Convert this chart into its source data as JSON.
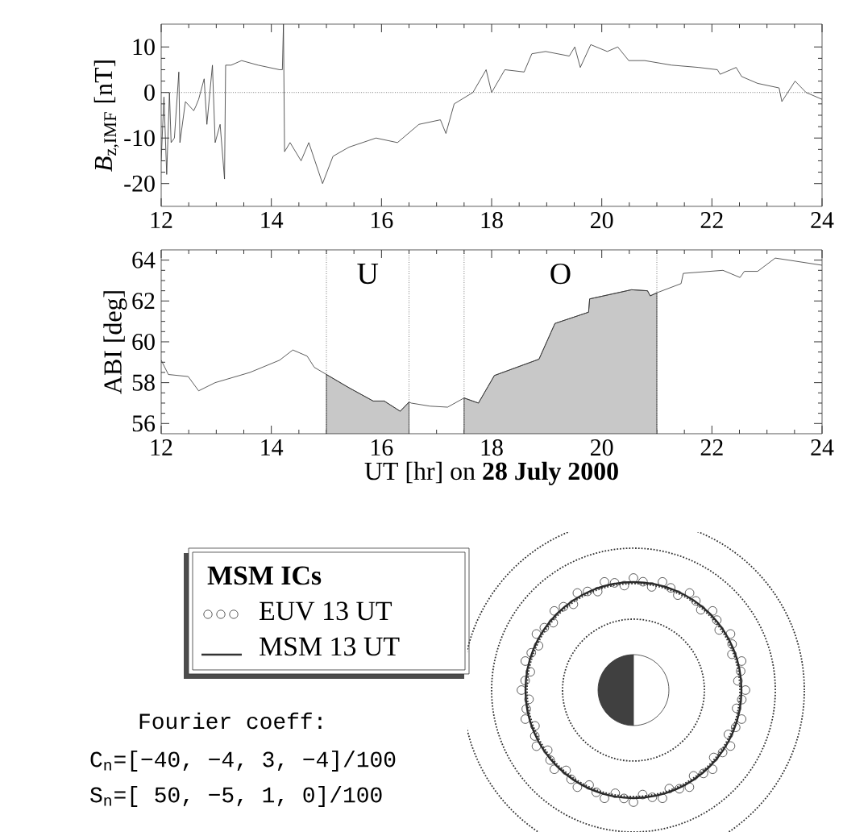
{
  "chart_data": [
    {
      "type": "line",
      "ylabel": "*B*$_{z,IMF}$ [nT]",
      "xlim": [
        12,
        24
      ],
      "ylim": [
        -25,
        15
      ],
      "xticks": [
        12,
        14,
        16,
        18,
        20,
        22,
        24
      ],
      "yticks": [
        -20,
        -10,
        0,
        10
      ],
      "ref_lines": [
        {
          "axis": "y",
          "value": 0,
          "line_style": "dotted"
        }
      ],
      "series": [
        {
          "color": "#333333",
          "x": [
            12.0,
            12.05,
            12.1,
            12.15,
            12.18,
            12.24,
            12.32,
            12.34,
            12.44,
            12.59,
            12.63,
            12.68,
            12.78,
            12.83,
            12.93,
            12.98,
            13.07,
            13.15,
            13.17,
            13.27,
            13.46,
            13.76,
            14.15,
            14.2,
            14.22,
            14.24,
            14.34,
            14.54,
            14.68,
            14.93,
            15.12,
            15.41,
            15.9,
            16.29,
            16.68,
            17.07,
            17.17,
            17.32,
            17.66,
            17.9,
            18.0,
            18.24,
            18.59,
            18.73,
            18.98,
            19.41,
            19.51,
            19.61,
            19.8,
            20.1,
            20.29,
            20.49,
            20.78,
            21.27,
            21.76,
            22.1,
            22.15,
            22.44,
            22.54,
            22.83,
            23.22,
            23.27,
            23.51,
            23.71,
            24.0
          ],
          "values": [
            -15,
            -1,
            -18,
            0,
            -11,
            -10,
            4.5,
            -11,
            -2,
            -4,
            -3,
            -1.5,
            3,
            -7,
            6,
            -11,
            -7,
            -19,
            6,
            6,
            7,
            6,
            5,
            5,
            15,
            -13,
            -11,
            -15,
            -11,
            -20,
            -14,
            -12,
            -10,
            -11,
            -7,
            -6,
            -9,
            -2.5,
            0,
            5,
            0,
            5,
            4.5,
            8.5,
            9,
            8,
            10,
            5.5,
            10.5,
            9,
            10,
            7,
            7,
            6,
            5.5,
            5,
            4,
            5.5,
            3.5,
            2,
            1,
            -2,
            2.5,
            0,
            -1.5
          ]
        }
      ]
    },
    {
      "type": "line",
      "ylabel": "ABI [deg]",
      "xlabel": "UT [hr] on **28 July 2000**",
      "xlim": [
        12,
        24
      ],
      "ylim": [
        55.5,
        64.5
      ],
      "xticks": [
        12,
        14,
        16,
        18,
        20,
        22,
        24
      ],
      "yticks": [
        56,
        58,
        60,
        62,
        64
      ],
      "ref_lines": [
        {
          "axis": "x",
          "value": 15,
          "line_style": "dotted"
        },
        {
          "axis": "x",
          "value": 16.5,
          "line_style": "dotted"
        },
        {
          "axis": "x",
          "value": 17.5,
          "line_style": "dotted"
        },
        {
          "axis": "x",
          "value": 21,
          "line_style": "dotted"
        }
      ],
      "annotations": [
        "U",
        "O"
      ],
      "series": [
        {
          "type": "area",
          "color": "#c8c8c8",
          "x": [
            15.0,
            15.41,
            15.85,
            16.05,
            16.34,
            16.5
          ],
          "values": [
            58.4,
            57.75,
            57.1,
            57.1,
            56.6,
            57.05
          ]
        },
        {
          "type": "area",
          "color": "#c8c8c8",
          "x": [
            17.5,
            17.76,
            18.05,
            18.86,
            19.15,
            19.76,
            19.78,
            20.54,
            20.83,
            20.88,
            21.0
          ],
          "values": [
            57.25,
            57.0,
            58.35,
            59.15,
            60.9,
            61.45,
            62.1,
            62.55,
            62.5,
            62.25,
            62.4
          ]
        },
        {
          "type": "line",
          "color": "#333333",
          "x": [
            12.0,
            12.13,
            12.49,
            12.68,
            12.98,
            13.61,
            14.15,
            14.39,
            14.65,
            14.78,
            15.0,
            15.41,
            15.85,
            16.05,
            16.34,
            16.5,
            16.54,
            16.88,
            17.2,
            17.5,
            17.76,
            18.05,
            18.86,
            19.15,
            19.76,
            19.78,
            20.54,
            20.83,
            20.88,
            21.0,
            21.44,
            21.48,
            22.2,
            22.51,
            22.59,
            22.83,
            23.15,
            24.0
          ],
          "values": [
            59.1,
            58.4,
            58.3,
            57.6,
            58.0,
            58.5,
            59.1,
            59.6,
            59.3,
            58.75,
            58.4,
            57.75,
            57.1,
            57.1,
            56.6,
            57.05,
            57.0,
            56.85,
            56.8,
            57.25,
            57.0,
            58.35,
            59.15,
            60.9,
            61.45,
            62.1,
            62.55,
            62.5,
            62.25,
            62.4,
            62.85,
            63.35,
            63.5,
            63.15,
            63.45,
            63.45,
            64.1,
            63.75
          ]
        }
      ]
    },
    {
      "type": "other",
      "legend_title": "**MSM ICs**",
      "annotations": [
        "EUV 13 UT",
        "MSM 13 UT",
        "Fourier coeff:",
        "C$_{n}$=[−40, −4,  3, −4]/100",
        "S$_{n}$=[ 50, −5,  1,  0]/100"
      ]
    }
  ]
}
